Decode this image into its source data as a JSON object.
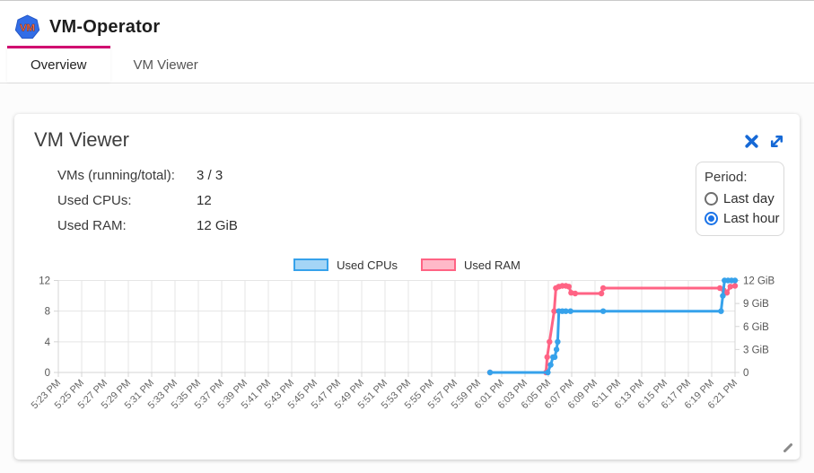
{
  "header": {
    "title": "VM-Operator",
    "logo_text": "VM",
    "logo_color": "#326de6",
    "logo_text_color": "#ff7043"
  },
  "tabs": [
    {
      "label": "Overview",
      "active": true
    },
    {
      "label": "VM Viewer",
      "active": false
    }
  ],
  "accent": {
    "tab_indicator": "#d0006f",
    "icon_blue": "#1669d6",
    "radio_selected": "#1a73e8"
  },
  "card": {
    "title": "VM Viewer",
    "stats": [
      {
        "label": "VMs (running/total):",
        "value": "3 / 3"
      },
      {
        "label": "Used CPUs:",
        "value": "12"
      },
      {
        "label": "Used RAM:",
        "value": "12 GiB"
      }
    ],
    "period": {
      "label": "Period:",
      "options": [
        {
          "label": "Last day",
          "selected": false
        },
        {
          "label": "Last hour",
          "selected": true
        }
      ]
    },
    "icons": [
      "close-icon",
      "expand-icon",
      "resize-handle-icon"
    ]
  },
  "chart_data": {
    "type": "line",
    "title": "",
    "grid": true,
    "legend_position": "top-center",
    "legend": [
      {
        "name": "Used CPUs",
        "color": "#36a2eb",
        "fill": "rgba(54,162,235,0.45)"
      },
      {
        "name": "Used RAM",
        "color": "#ff6384",
        "fill": "rgba(255,99,132,0.45)"
      }
    ],
    "x_axis": {
      "unit": "minutes since 5:23 PM",
      "range_minutes": [
        0,
        58
      ],
      "tick_interval_minutes": 2,
      "tick_labels": [
        "5:23 PM",
        "5:25 PM",
        "5:27 PM",
        "5:29 PM",
        "5:31 PM",
        "5:33 PM",
        "5:35 PM",
        "5:37 PM",
        "5:39 PM",
        "5:41 PM",
        "5:43 PM",
        "5:45 PM",
        "5:47 PM",
        "5:49 PM",
        "5:51 PM",
        "5:53 PM",
        "5:55 PM",
        "5:57 PM",
        "5:59 PM",
        "6:01 PM",
        "6:03 PM",
        "6:05 PM",
        "6:07 PM",
        "6:09 PM",
        "6:11 PM",
        "6:13 PM",
        "6:15 PM",
        "6:17 PM",
        "6:19 PM",
        "6:21 PM"
      ]
    },
    "y_axis_left": {
      "title": "CPUs",
      "range": [
        0,
        12
      ],
      "tick_values": [
        0,
        4,
        8,
        12
      ],
      "tick_labels": [
        "0",
        "4",
        "8",
        "12"
      ]
    },
    "y_axis_right": {
      "title": "RAM",
      "range": [
        0,
        12
      ],
      "tick_values": [
        0,
        3,
        6,
        9,
        12
      ],
      "tick_labels": [
        "0",
        "3 GiB",
        "6 GiB",
        "9 GiB",
        "12 GiB"
      ]
    },
    "series": [
      {
        "name": "Used RAM",
        "axis": "right",
        "unit": "GiB",
        "color": "#ff6384",
        "points": [
          [
            37,
            0
          ],
          [
            41.8,
            0
          ],
          [
            41.9,
            2
          ],
          [
            42.1,
            4
          ],
          [
            42.5,
            8
          ],
          [
            42.65,
            11
          ],
          [
            42.9,
            11.2
          ],
          [
            43.2,
            11.3
          ],
          [
            43.5,
            11.3
          ],
          [
            43.75,
            11.2
          ],
          [
            43.95,
            10.4
          ],
          [
            44.3,
            10.3
          ],
          [
            46.55,
            10.3
          ],
          [
            46.7,
            11
          ],
          [
            56.7,
            11
          ],
          [
            57.05,
            10.7
          ],
          [
            57.3,
            10.4
          ],
          [
            57.6,
            11.2
          ],
          [
            58,
            11.3
          ]
        ]
      },
      {
        "name": "Used CPUs",
        "axis": "left",
        "unit": "CPUs",
        "color": "#36a2eb",
        "points": [
          [
            37,
            0
          ],
          [
            41.95,
            0
          ],
          [
            42.2,
            1
          ],
          [
            42.4,
            2
          ],
          [
            42.55,
            2
          ],
          [
            42.7,
            3
          ],
          [
            42.8,
            4
          ],
          [
            42.9,
            8
          ],
          [
            43.2,
            8
          ],
          [
            43.5,
            8
          ],
          [
            43.9,
            8
          ],
          [
            46.7,
            8
          ],
          [
            56.8,
            8
          ],
          [
            56.95,
            10
          ],
          [
            57.1,
            12
          ],
          [
            57.4,
            12
          ],
          [
            57.7,
            12
          ],
          [
            58,
            12
          ]
        ]
      }
    ]
  }
}
